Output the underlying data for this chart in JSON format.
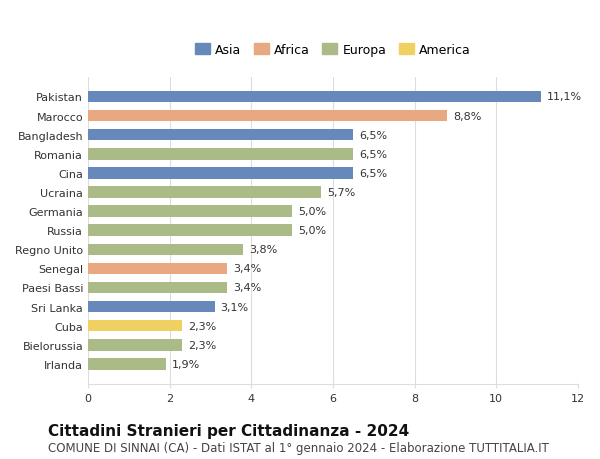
{
  "countries": [
    "Pakistan",
    "Marocco",
    "Bangladesh",
    "Romania",
    "Cina",
    "Ucraina",
    "Germania",
    "Russia",
    "Regno Unito",
    "Senegal",
    "Paesi Bassi",
    "Sri Lanka",
    "Cuba",
    "Bielorussia",
    "Irlanda"
  ],
  "values": [
    11.1,
    8.8,
    6.5,
    6.5,
    6.5,
    5.7,
    5.0,
    5.0,
    3.8,
    3.4,
    3.4,
    3.1,
    2.3,
    2.3,
    1.9
  ],
  "labels": [
    "11,1%",
    "8,8%",
    "6,5%",
    "6,5%",
    "6,5%",
    "5,7%",
    "5,0%",
    "5,0%",
    "3,8%",
    "3,4%",
    "3,4%",
    "3,1%",
    "2,3%",
    "2,3%",
    "1,9%"
  ],
  "continents": [
    "Asia",
    "Africa",
    "Asia",
    "Europa",
    "Asia",
    "Europa",
    "Europa",
    "Europa",
    "Europa",
    "Africa",
    "Europa",
    "Asia",
    "America",
    "Europa",
    "Europa"
  ],
  "colors": {
    "Asia": "#6688bb",
    "Africa": "#e8a882",
    "Europa": "#aabb88",
    "America": "#f0d060"
  },
  "legend_order": [
    "Asia",
    "Africa",
    "Europa",
    "America"
  ],
  "title": "Cittadini Stranieri per Cittadinanza - 2024",
  "subtitle": "COMUNE DI SINNAI (CA) - Dati ISTAT al 1° gennaio 2024 - Elaborazione TUTTITALIA.IT",
  "xlim": [
    0,
    12
  ],
  "xticks": [
    0,
    2,
    4,
    6,
    8,
    10,
    12
  ],
  "bg_color": "#ffffff",
  "grid_color": "#dddddd",
  "title_fontsize": 11,
  "subtitle_fontsize": 8.5,
  "label_fontsize": 8,
  "tick_fontsize": 8
}
